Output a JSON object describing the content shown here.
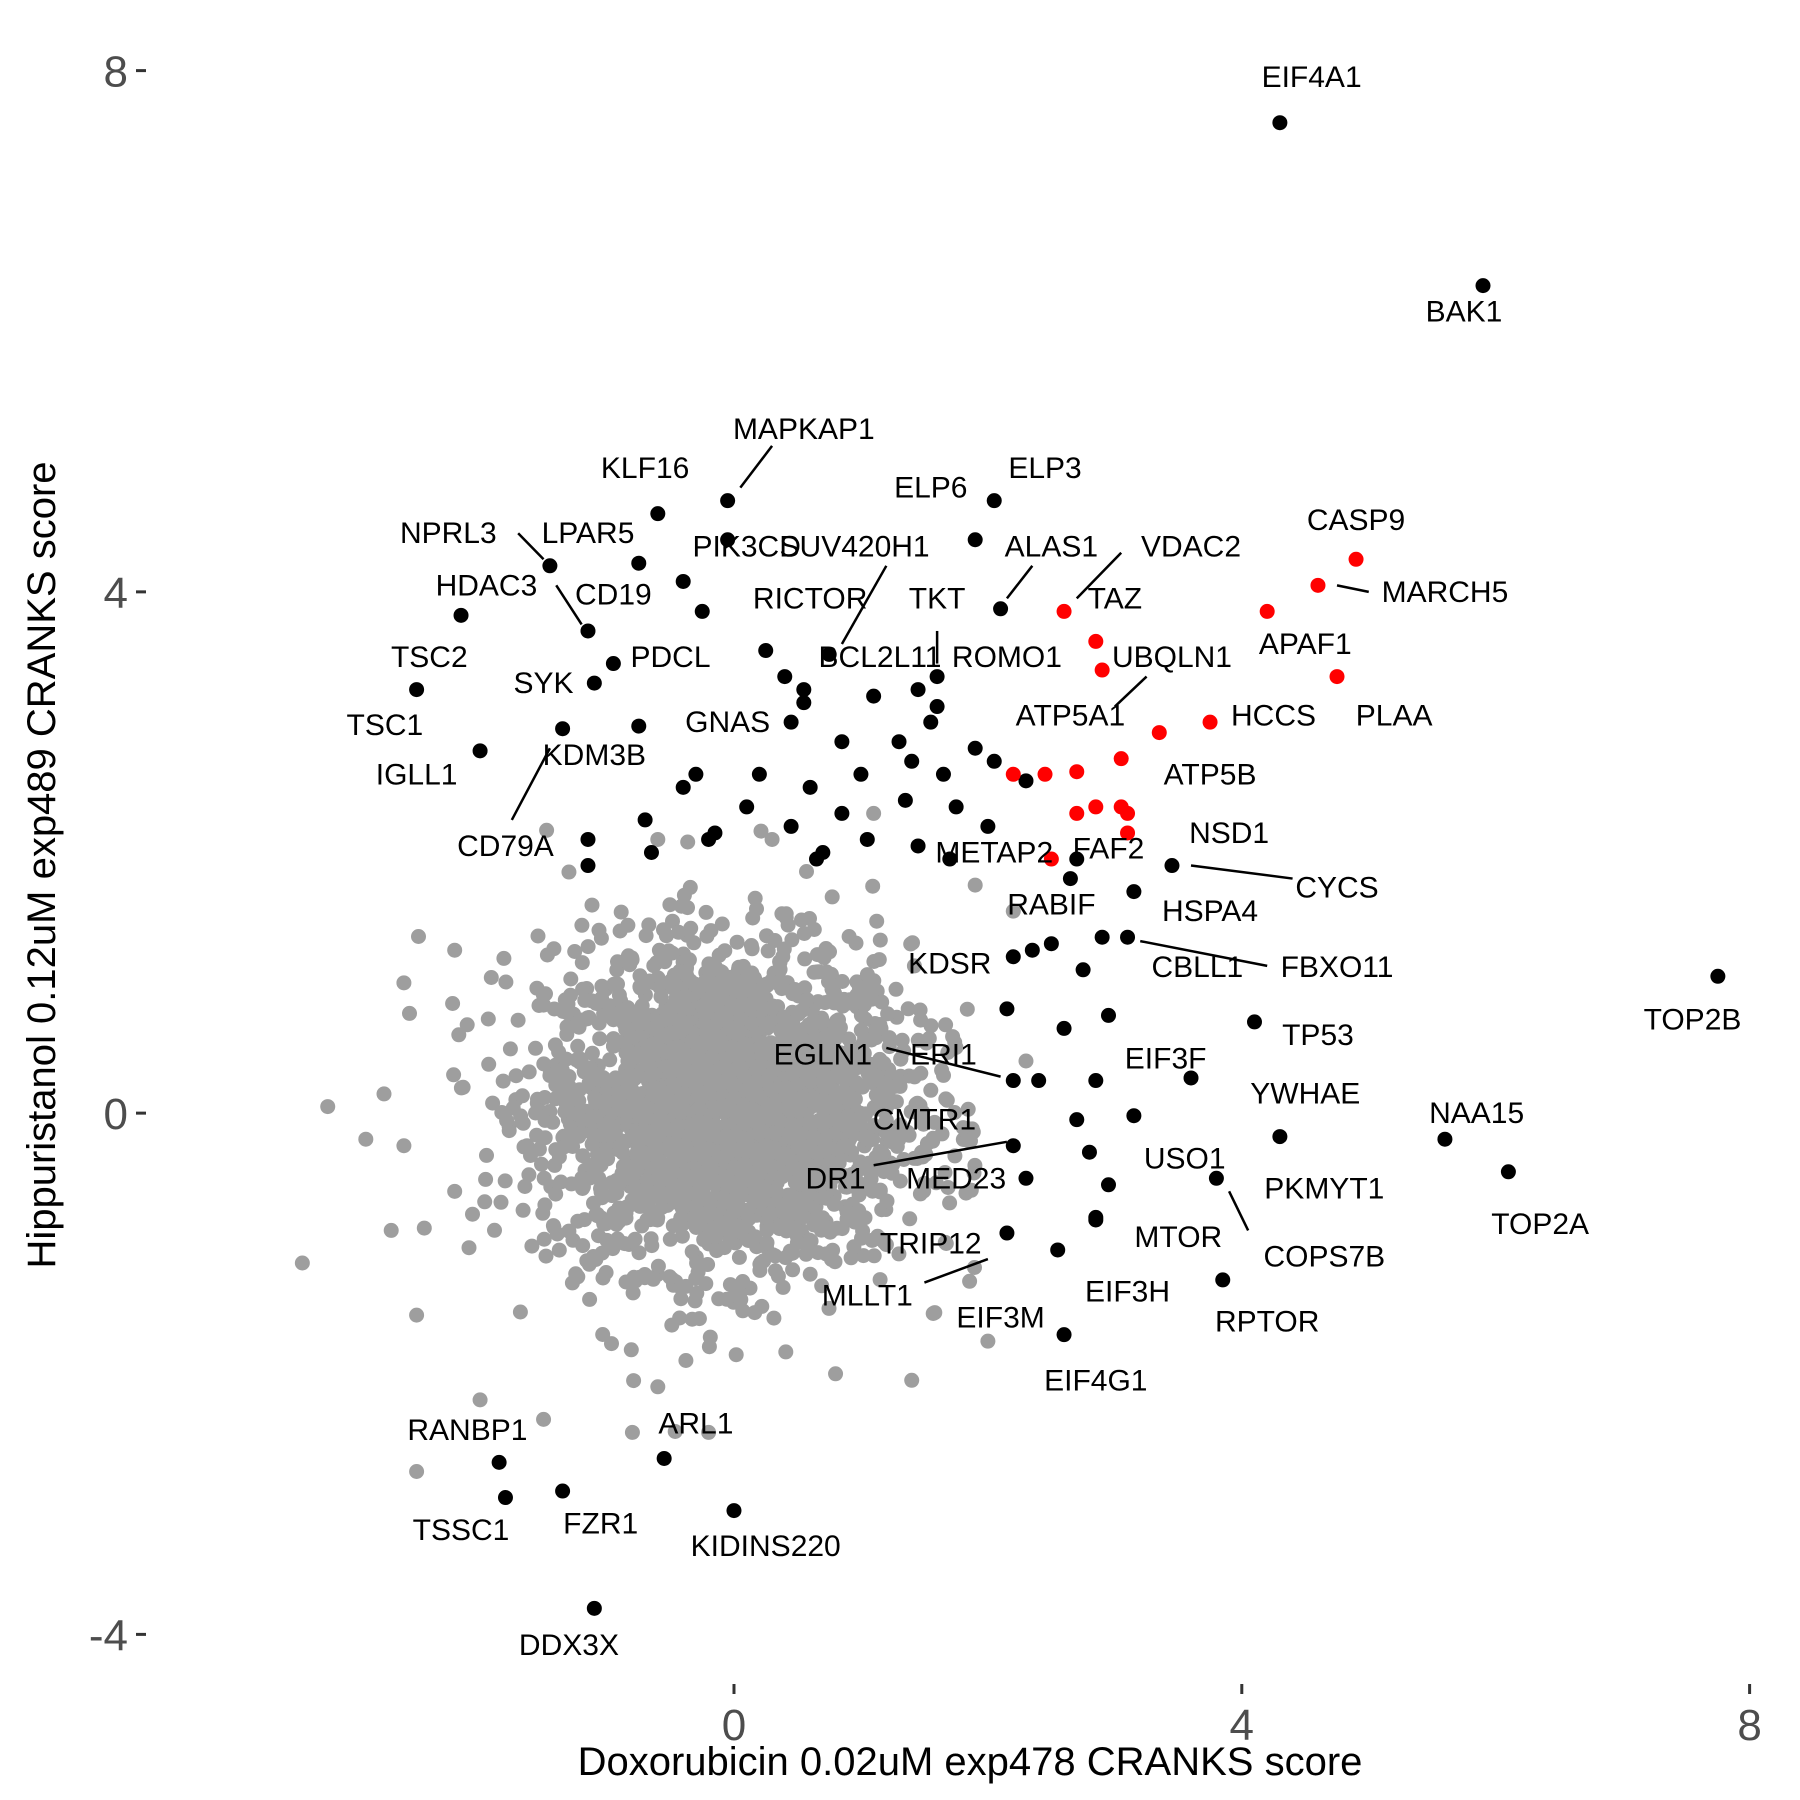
{
  "chart_data": {
    "type": "scatter",
    "xlabel": "Doxorubicin 0.02uM exp478 CRANKS score",
    "ylabel": "Hippuristanol 0.12uM exp489 CRANKS score",
    "xlim": [
      -4.6,
      8.2
    ],
    "ylim": [
      -4.35,
      8.35
    ],
    "xticks": [
      0,
      4,
      8
    ],
    "yticks": [
      -4,
      0,
      4,
      8
    ],
    "grid": false,
    "legend": "none",
    "colors": {
      "background_points": "#9e9e9e",
      "labeled_points": "#000000",
      "highlighted_points": "#ff0000"
    },
    "background_cloud": {
      "description_free_stats": true,
      "n": 2600,
      "center": [
        -0.05,
        0.05
      ],
      "sd": [
        0.72,
        0.62
      ]
    },
    "grey_points": [
      [
        -3.2,
        0.05
      ],
      [
        -3.4,
        -1.15
      ],
      [
        -2.7,
        -0.9
      ],
      [
        -2.6,
        -0.25
      ],
      [
        -2.6,
        1.0
      ],
      [
        -2.2,
        -0.6
      ],
      [
        -2.2,
        1.25
      ],
      [
        -2.5,
        -1.55
      ],
      [
        -2.5,
        -2.75
      ],
      [
        -2.0,
        -2.2
      ],
      [
        -1.5,
        -2.35
      ],
      [
        -0.8,
        -2.45
      ],
      [
        -0.2,
        -2.45
      ],
      [
        -0.6,
        -2.1
      ],
      [
        0.8,
        -2.0
      ],
      [
        1.4,
        -2.05
      ],
      [
        -1.3,
        1.85
      ],
      [
        -0.6,
        2.1
      ],
      [
        0.3,
        2.1
      ],
      [
        1.1,
        2.3
      ],
      [
        1.9,
        1.75
      ],
      [
        2.2,
        1.55
      ],
      [
        2.0,
        -1.75
      ],
      [
        2.3,
        0.4
      ],
      [
        -2.9,
        -0.2
      ]
    ],
    "black_points": [
      {
        "label": "EIF4A1",
        "x": 4.3,
        "y": 7.6
      },
      {
        "label": "BAK1",
        "x": 5.9,
        "y": 6.35
      },
      {
        "label": "MAPKAP1",
        "x": -0.05,
        "y": 4.7
      },
      {
        "label": "KLF16",
        "x": -0.6,
        "y": 4.6
      },
      {
        "label": "ELP3",
        "x": 2.05,
        "y": 4.7
      },
      {
        "label": "ELP6",
        "x": 1.9,
        "y": 4.4
      },
      {
        "label": "NPRL3",
        "x": -1.45,
        "y": 4.2
      },
      {
        "label": "LPAR5",
        "x": -0.75,
        "y": 4.22
      },
      {
        "label": "PIK3CD",
        "x": -0.4,
        "y": 4.08
      },
      {
        "label": "SUV420H1",
        "x": -0.25,
        "y": 3.85
      },
      {
        "label": "ALAS1",
        "x": 2.1,
        "y": 3.87
      },
      {
        "label": "HDAC3",
        "x": -2.15,
        "y": 3.82
      },
      {
        "label": "CD19",
        "x": -1.15,
        "y": 3.7
      },
      {
        "label": "RICTOR",
        "x": 0.25,
        "y": 3.55
      },
      {
        "label": "BCL2L11",
        "x": 0.75,
        "y": 3.52
      },
      {
        "label": "PDCL",
        "x": -0.95,
        "y": 3.45
      },
      {
        "label": "TKT",
        "x": 1.6,
        "y": 3.35
      },
      {
        "label": "ROMO1",
        "x": 1.6,
        "y": 3.12
      },
      {
        "label": "TSC2",
        "x": -1.1,
        "y": 3.3
      },
      {
        "label": "TSC1",
        "x": -2.5,
        "y": 3.25
      },
      {
        "label": "SYK",
        "x": -1.35,
        "y": 2.95
      },
      {
        "label": "GNAS",
        "x": -0.75,
        "y": 2.97
      },
      {
        "label": "IGLL1",
        "x": -2.0,
        "y": 2.78
      },
      {
        "label": "KDM3B",
        "x": -0.3,
        "y": 2.6
      },
      {
        "label": "CD79A",
        "x": -1.15,
        "y": 2.1
      },
      {
        "label": "METAP2",
        "x": 2.7,
        "y": 1.95
      },
      {
        "label": "NSD1",
        "x": 3.45,
        "y": 1.9
      },
      {
        "label": "HSPA4",
        "x": 3.15,
        "y": 1.7
      },
      {
        "label": "RABIF",
        "x": 2.65,
        "y": 1.8
      },
      {
        "label": "CBLL1",
        "x": 3.1,
        "y": 1.35
      },
      {
        "label": "KDSR",
        "x": 2.35,
        "y": 1.25
      },
      {
        "label": "TOP2B",
        "x": 7.75,
        "y": 1.05
      },
      {
        "label": "TP53",
        "x": 4.1,
        "y": 0.7
      },
      {
        "label": "EIF3F",
        "x": 3.6,
        "y": 0.27
      },
      {
        "label": "ERI1",
        "x": 2.2,
        "y": 0.25
      },
      {
        "label": "NAA15",
        "x": 5.6,
        "y": -0.2
      },
      {
        "label": "YWHAE",
        "x": 4.3,
        "y": -0.18
      },
      {
        "label": "TOP2A",
        "x": 6.1,
        "y": -0.45
      },
      {
        "label": "USO1",
        "x": 3.15,
        "y": -0.02
      },
      {
        "label": "COPS7B",
        "x": 3.8,
        "y": -0.5
      },
      {
        "label": "MED23",
        "x": 2.2,
        "y": -0.25
      },
      {
        "label": "MTOR",
        "x": 2.85,
        "y": -0.8
      },
      {
        "label": "TRIP12",
        "x": 2.15,
        "y": -0.92
      },
      {
        "label": "EIF3H",
        "x": 2.55,
        "y": -1.05
      },
      {
        "label": "RPTOR",
        "x": 3.85,
        "y": -1.28
      },
      {
        "label": "EIF4G1",
        "x": 2.6,
        "y": -1.7
      },
      {
        "label": "RANBP1",
        "x": -1.85,
        "y": -2.68
      },
      {
        "label": "ARL1",
        "x": -0.55,
        "y": -2.65
      },
      {
        "label": "TSSC1",
        "x": -1.8,
        "y": -2.95
      },
      {
        "label": "FZR1",
        "x": -1.35,
        "y": -2.9
      },
      {
        "label": "KIDINS220",
        "x": 0.0,
        "y": -3.05
      },
      {
        "label": "DDX3X",
        "x": -1.1,
        "y": -3.8
      },
      {
        "label": "",
        "x": -0.05,
        "y": 4.4
      },
      {
        "label": "",
        "x": 0.4,
        "y": 3.35
      },
      {
        "label": "",
        "x": 0.55,
        "y": 3.25
      },
      {
        "label": "",
        "x": 1.1,
        "y": 3.2
      },
      {
        "label": "",
        "x": 1.45,
        "y": 3.25
      },
      {
        "label": "",
        "x": 0.45,
        "y": 3.0
      },
      {
        "label": "",
        "x": 0.85,
        "y": 2.85
      },
      {
        "label": "",
        "x": 1.3,
        "y": 2.85
      },
      {
        "label": "",
        "x": 1.55,
        "y": 3.0
      },
      {
        "label": "",
        "x": 1.9,
        "y": 2.8
      },
      {
        "label": "",
        "x": 2.05,
        "y": 2.7
      },
      {
        "label": "",
        "x": 2.3,
        "y": 2.55
      },
      {
        "label": "",
        "x": 0.2,
        "y": 2.6
      },
      {
        "label": "",
        "x": 0.6,
        "y": 2.5
      },
      {
        "label": "",
        "x": 1.0,
        "y": 2.6
      },
      {
        "label": "",
        "x": 1.4,
        "y": 2.7
      },
      {
        "label": "",
        "x": 1.65,
        "y": 2.6
      },
      {
        "label": "",
        "x": -0.4,
        "y": 2.5
      },
      {
        "label": "",
        "x": 0.1,
        "y": 2.35
      },
      {
        "label": "",
        "x": 0.45,
        "y": 2.2
      },
      {
        "label": "",
        "x": 0.85,
        "y": 2.3
      },
      {
        "label": "",
        "x": 1.35,
        "y": 2.4
      },
      {
        "label": "",
        "x": 1.75,
        "y": 2.35
      },
      {
        "label": "",
        "x": -0.7,
        "y": 2.25
      },
      {
        "label": "",
        "x": -0.2,
        "y": 2.1
      },
      {
        "label": "",
        "x": 0.7,
        "y": 2.0
      },
      {
        "label": "",
        "x": 1.05,
        "y": 2.1
      },
      {
        "label": "",
        "x": 1.45,
        "y": 2.05
      },
      {
        "label": "",
        "x": 2.0,
        "y": 2.2
      },
      {
        "label": "",
        "x": 2.2,
        "y": 1.2
      },
      {
        "label": "",
        "x": 2.5,
        "y": 1.3
      },
      {
        "label": "",
        "x": 2.9,
        "y": 1.35
      },
      {
        "label": "",
        "x": 2.75,
        "y": 1.1
      },
      {
        "label": "",
        "x": 2.15,
        "y": 0.8
      },
      {
        "label": "",
        "x": 2.6,
        "y": 0.65
      },
      {
        "label": "",
        "x": 2.95,
        "y": 0.75
      },
      {
        "label": "",
        "x": 2.4,
        "y": 0.25
      },
      {
        "label": "",
        "x": 2.85,
        "y": 0.25
      },
      {
        "label": "",
        "x": 2.7,
        "y": -0.05
      },
      {
        "label": "",
        "x": 2.3,
        "y": -0.5
      },
      {
        "label": "",
        "x": 2.95,
        "y": -0.55
      },
      {
        "label": "",
        "x": 2.8,
        "y": -0.3
      },
      {
        "label": "",
        "x": 2.85,
        "y": -0.82
      },
      {
        "label": "",
        "x": 0.55,
        "y": 3.15
      },
      {
        "label": "",
        "x": -0.15,
        "y": 2.15
      },
      {
        "label": "",
        "x": 1.7,
        "y": 1.95
      },
      {
        "label": "",
        "x": 0.65,
        "y": 1.95
      },
      {
        "label": "",
        "x": -0.65,
        "y": 2.0
      },
      {
        "label": "",
        "x": -1.15,
        "y": 1.9
      }
    ],
    "red_points": [
      {
        "label": "CASP9",
        "x": 4.9,
        "y": 4.25
      },
      {
        "label": "MARCH5",
        "x": 4.6,
        "y": 4.05
      },
      {
        "label": "VDAC2",
        "x": 2.6,
        "y": 3.85
      },
      {
        "label": "APAF1",
        "x": 4.2,
        "y": 3.85
      },
      {
        "label": "TAZ",
        "x": 2.85,
        "y": 3.62
      },
      {
        "label": "UBQLN1",
        "x": 2.9,
        "y": 3.4
      },
      {
        "label": "PLAA",
        "x": 4.75,
        "y": 3.35
      },
      {
        "label": "HCCS",
        "x": 3.75,
        "y": 3.0
      },
      {
        "label": "ATP5A1",
        "x": 3.35,
        "y": 2.92
      },
      {
        "label": "ATP5B",
        "x": 3.05,
        "y": 2.72
      },
      {
        "label": "FAF2",
        "x": 3.1,
        "y": 2.3
      },
      {
        "label": "",
        "x": 2.2,
        "y": 2.6
      },
      {
        "label": "",
        "x": 2.45,
        "y": 2.6
      },
      {
        "label": "",
        "x": 2.7,
        "y": 2.62
      },
      {
        "label": "",
        "x": 2.7,
        "y": 2.3
      },
      {
        "label": "",
        "x": 2.85,
        "y": 2.35
      },
      {
        "label": "",
        "x": 3.05,
        "y": 2.35
      },
      {
        "label": "",
        "x": 3.1,
        "y": 2.15
      },
      {
        "label": "",
        "x": 2.5,
        "y": 1.95
      }
    ],
    "annotations": [
      {
        "text": "EIF4A1",
        "x": 4.55,
        "y": 7.95
      },
      {
        "text": "BAK1",
        "x": 5.75,
        "y": 6.15
      },
      {
        "text": "MAPKAP1",
        "x": 0.55,
        "y": 5.25,
        "line": [
          [
            0.05,
            4.8
          ],
          [
            0.3,
            5.12
          ]
        ]
      },
      {
        "text": "KLF16",
        "x": -0.7,
        "y": 4.95
      },
      {
        "text": "ELP3",
        "x": 2.45,
        "y": 4.95
      },
      {
        "text": "ELP6",
        "x": 1.55,
        "y": 4.8
      },
      {
        "text": "NPRL3",
        "x": -2.25,
        "y": 4.45,
        "line": [
          [
            -1.7,
            4.45
          ],
          [
            -1.5,
            4.25
          ]
        ]
      },
      {
        "text": "LPAR5",
        "x": -1.15,
        "y": 4.45
      },
      {
        "text": "PIK3CD",
        "x": 0.1,
        "y": 4.35
      },
      {
        "text": "SUV420H1",
        "x": 0.95,
        "y": 4.35,
        "line": [
          [
            0.85,
            3.6
          ],
          [
            1.2,
            4.2
          ]
        ]
      },
      {
        "text": "ALAS1",
        "x": 2.5,
        "y": 4.35,
        "line": [
          [
            2.15,
            3.95
          ],
          [
            2.35,
            4.2
          ]
        ]
      },
      {
        "text": "VDAC2",
        "x": 3.6,
        "y": 4.35,
        "line": [
          [
            2.7,
            3.95
          ],
          [
            3.05,
            4.3
          ]
        ]
      },
      {
        "text": "CASP9",
        "x": 4.9,
        "y": 4.55
      },
      {
        "text": "HDAC3",
        "x": -1.95,
        "y": 4.05,
        "line": [
          [
            -1.4,
            4.05
          ],
          [
            -1.2,
            3.75
          ]
        ]
      },
      {
        "text": "CD19",
        "x": -0.95,
        "y": 3.98
      },
      {
        "text": "MARCH5",
        "x": 5.6,
        "y": 4.0,
        "line": [
          [
            4.75,
            4.05
          ],
          [
            5.0,
            4.0
          ]
        ]
      },
      {
        "text": "RICTOR",
        "x": 0.6,
        "y": 3.95
      },
      {
        "text": "TKT",
        "x": 1.6,
        "y": 3.95,
        "line": [
          [
            1.6,
            3.45
          ],
          [
            1.6,
            3.7
          ]
        ]
      },
      {
        "text": "TAZ",
        "x": 3.0,
        "y": 3.95
      },
      {
        "text": "APAF1",
        "x": 4.5,
        "y": 3.6
      },
      {
        "text": "TSC2",
        "x": -2.4,
        "y": 3.5
      },
      {
        "text": "PDCL",
        "x": -0.5,
        "y": 3.5
      },
      {
        "text": "BCL2L11",
        "x": 1.15,
        "y": 3.5
      },
      {
        "text": "ROMO1",
        "x": 2.15,
        "y": 3.5
      },
      {
        "text": "UBQLN1",
        "x": 3.45,
        "y": 3.5,
        "line": [
          [
            3.0,
            3.12
          ],
          [
            3.25,
            3.35
          ]
        ]
      },
      {
        "text": "SYK",
        "x": -1.5,
        "y": 3.3
      },
      {
        "text": "TSC1",
        "x": -2.75,
        "y": 2.98
      },
      {
        "text": "GNAS",
        "x": -0.05,
        "y": 3.0
      },
      {
        "text": "ATP5A1",
        "x": 2.65,
        "y": 3.05
      },
      {
        "text": "HCCS",
        "x": 4.25,
        "y": 3.05
      },
      {
        "text": "PLAA",
        "x": 5.2,
        "y": 3.05
      },
      {
        "text": "KDM3B",
        "x": -1.1,
        "y": 2.75,
        "line": [
          [
            -1.75,
            2.25
          ],
          [
            -1.45,
            2.8
          ]
        ]
      },
      {
        "text": "IGLL1",
        "x": -2.5,
        "y": 2.6
      },
      {
        "text": "ATP5B",
        "x": 3.75,
        "y": 2.6
      },
      {
        "text": "CD79A",
        "x": -1.8,
        "y": 2.05
      },
      {
        "text": "NSD1",
        "x": 3.9,
        "y": 2.15
      },
      {
        "text": "METAP2",
        "x": 2.05,
        "y": 2.0
      },
      {
        "text": "FAF2",
        "x": 2.95,
        "y": 2.03
      },
      {
        "text": "CYCS",
        "x": 4.75,
        "y": 1.73,
        "line": [
          [
            3.6,
            1.9
          ],
          [
            4.4,
            1.8
          ]
        ]
      },
      {
        "text": "HSPA4",
        "x": 3.75,
        "y": 1.55
      },
      {
        "text": "RABIF",
        "x": 2.5,
        "y": 1.6
      },
      {
        "text": "CBLL1",
        "x": 3.65,
        "y": 1.12
      },
      {
        "text": "FBXO11",
        "x": 4.75,
        "y": 1.12,
        "line": [
          [
            3.2,
            1.32
          ],
          [
            4.2,
            1.13
          ]
        ]
      },
      {
        "text": "KDSR",
        "x": 1.7,
        "y": 1.15
      },
      {
        "text": "TOP2B",
        "x": 7.55,
        "y": 0.72
      },
      {
        "text": "TP53",
        "x": 4.6,
        "y": 0.6
      },
      {
        "text": "EGLN1",
        "x": 0.7,
        "y": 0.45,
        "line": [
          [
            1.2,
            0.5
          ],
          [
            2.1,
            0.28
          ]
        ]
      },
      {
        "text": "ERI1",
        "x": 1.65,
        "y": 0.45
      },
      {
        "text": "EIF3F",
        "x": 3.4,
        "y": 0.42
      },
      {
        "text": "YWHAE",
        "x": 4.5,
        "y": 0.15
      },
      {
        "text": "NAA15",
        "x": 5.85,
        "y": 0.0
      },
      {
        "text": "CMTR1",
        "x": 1.5,
        "y": -0.05
      },
      {
        "text": "USO1",
        "x": 3.55,
        "y": -0.35
      },
      {
        "text": "DR1",
        "x": 0.8,
        "y": -0.5,
        "line": [
          [
            1.1,
            -0.4
          ],
          [
            2.15,
            -0.22
          ]
        ]
      },
      {
        "text": "MED23",
        "x": 1.75,
        "y": -0.5
      },
      {
        "text": "PKMYT1",
        "x": 4.65,
        "y": -0.58
      },
      {
        "text": "TOP2A",
        "x": 6.35,
        "y": -0.85
      },
      {
        "text": "MTOR",
        "x": 3.5,
        "y": -0.95
      },
      {
        "text": "COPS7B",
        "x": 4.65,
        "y": -1.1,
        "line": [
          [
            3.9,
            -0.6
          ],
          [
            4.05,
            -0.9
          ]
        ]
      },
      {
        "text": "TRIP12",
        "x": 1.55,
        "y": -1.0
      },
      {
        "text": "MLLT1",
        "x": 1.05,
        "y": -1.4,
        "line": [
          [
            1.5,
            -1.3
          ],
          [
            2.0,
            -1.12
          ]
        ]
      },
      {
        "text": "EIF3H",
        "x": 3.1,
        "y": -1.37
      },
      {
        "text": "EIF3M",
        "x": 2.1,
        "y": -1.57
      },
      {
        "text": "RPTOR",
        "x": 4.2,
        "y": -1.6
      },
      {
        "text": "EIF4G1",
        "x": 2.85,
        "y": -2.05
      },
      {
        "text": "RANBP1",
        "x": -2.1,
        "y": -2.43
      },
      {
        "text": "ARL1",
        "x": -0.3,
        "y": -2.38
      },
      {
        "text": "TSSC1",
        "x": -2.15,
        "y": -3.2
      },
      {
        "text": "FZR1",
        "x": -1.05,
        "y": -3.15
      },
      {
        "text": "KIDINS220",
        "x": 0.25,
        "y": -3.32
      },
      {
        "text": "DDX3X",
        "x": -1.3,
        "y": -4.08
      }
    ]
  }
}
